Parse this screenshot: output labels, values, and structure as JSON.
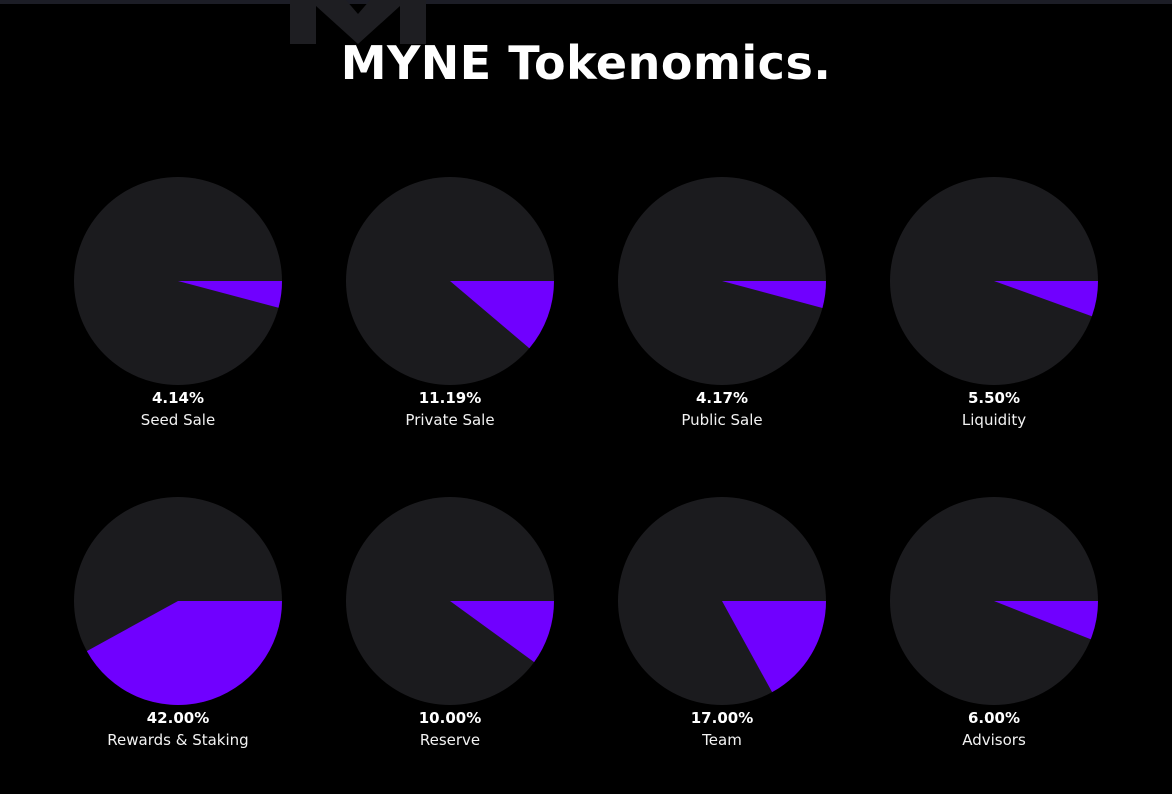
{
  "page": {
    "title": "MYNE Tokenomics."
  },
  "colors": {
    "background": "#000000",
    "pie_base": "#1b1b1e",
    "pie_slice": "#7000ff",
    "watermark": "#1e1e22"
  },
  "chart_data": [
    {
      "type": "pie",
      "label": "Seed Sale",
      "percent_text": "4.14%",
      "value": 4.14
    },
    {
      "type": "pie",
      "label": "Private Sale",
      "percent_text": "11.19%",
      "value": 11.19
    },
    {
      "type": "pie",
      "label": "Public Sale",
      "percent_text": "4.17%",
      "value": 4.17
    },
    {
      "type": "pie",
      "label": "Liquidity",
      "percent_text": "5.50%",
      "value": 5.5
    },
    {
      "type": "pie",
      "label": "Rewards & Staking",
      "percent_text": "42.00%",
      "value": 42.0
    },
    {
      "type": "pie",
      "label": "Reserve",
      "percent_text": "10.00%",
      "value": 10.0
    },
    {
      "type": "pie",
      "label": "Team",
      "percent_text": "17.00%",
      "value": 17.0
    },
    {
      "type": "pie",
      "label": "Advisors",
      "percent_text": "6.00%",
      "value": 6.0
    }
  ]
}
